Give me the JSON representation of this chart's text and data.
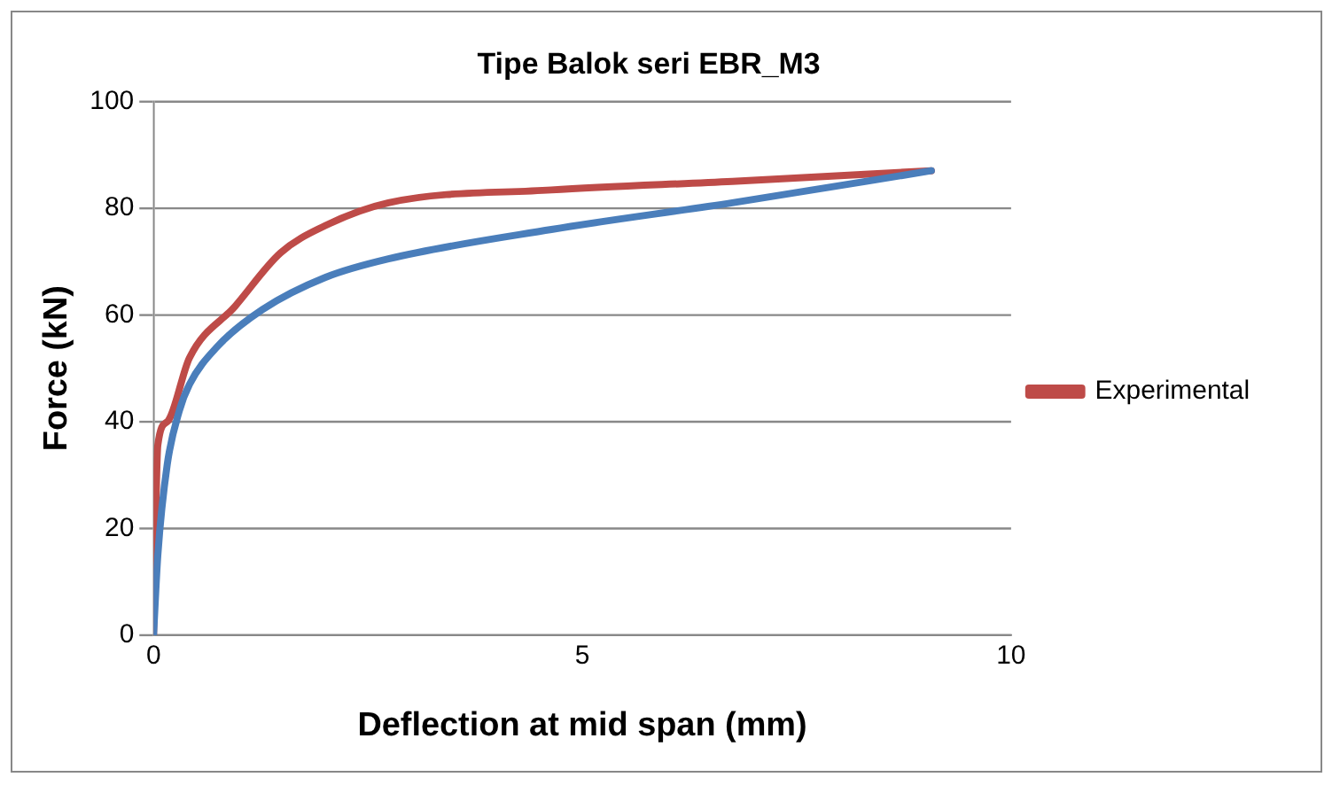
{
  "chart_data": {
    "type": "line",
    "title": "Tipe Balok seri EBR_M3",
    "xlabel": "Deflection at mid span (mm)",
    "ylabel": "Force (kN)",
    "xlim": [
      0,
      10
    ],
    "xticks": [
      0,
      5,
      10
    ],
    "ylim": [
      0,
      100
    ],
    "yticks": [
      0,
      20,
      40,
      60,
      80,
      100
    ],
    "grid": "y",
    "legend": "right",
    "marker": "none",
    "line_style": "solid",
    "series": [
      {
        "color": "#4a7ebb",
        "x": [
          0,
          0.05,
          0.16,
          0.3,
          0.42,
          0.74,
          1.27,
          2.0,
          2.74,
          4.64,
          6.75,
          9.07
        ],
        "values": [
          0,
          15,
          32,
          42,
          47,
          54,
          61,
          67,
          70.5,
          76,
          81,
          87
        ]
      },
      {
        "name": "Experimental",
        "color": "#be4b48",
        "x": [
          0,
          0.05,
          0.16,
          0.42,
          0.95,
          1.48,
          2.0,
          2.74,
          4.64,
          6.75,
          9.07
        ],
        "values": [
          0,
          35.6,
          40,
          52,
          61.6,
          71.6,
          76.7,
          81,
          83.4,
          85,
          87
        ]
      }
    ]
  }
}
